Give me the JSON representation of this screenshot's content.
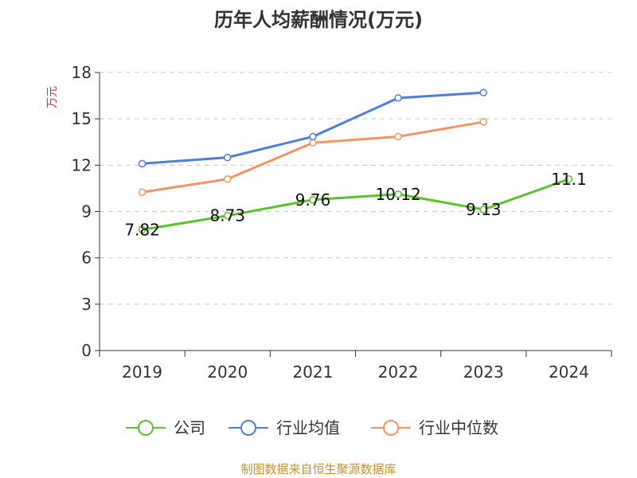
{
  "chart_data": {
    "type": "line",
    "title": "历年人均薪酬情况(万元)",
    "ylabel": "万元",
    "xlabel": "",
    "categories": [
      "2019",
      "2020",
      "2021",
      "2022",
      "2023",
      "2024"
    ],
    "ylim": [
      0,
      18
    ],
    "yticks": [
      0,
      3,
      6,
      9,
      12,
      15,
      18
    ],
    "grid": true,
    "legend_position": "bottom",
    "series": [
      {
        "name": "公司",
        "color": "#5cc22e",
        "values": [
          7.82,
          8.73,
          9.76,
          10.12,
          9.13,
          11.1
        ],
        "labels": [
          "7.82",
          "8.73",
          "9.76",
          "10.12",
          "9.13",
          "11.1"
        ]
      },
      {
        "name": "行业均值",
        "color": "#4f7fd8",
        "values": [
          12.1,
          12.5,
          13.85,
          16.35,
          16.7,
          null
        ]
      },
      {
        "name": "行业中位数",
        "color": "#f59463",
        "values": [
          10.25,
          11.1,
          13.45,
          13.85,
          14.8,
          null
        ]
      }
    ]
  },
  "source": "制图数据来自恒生聚源数据库"
}
